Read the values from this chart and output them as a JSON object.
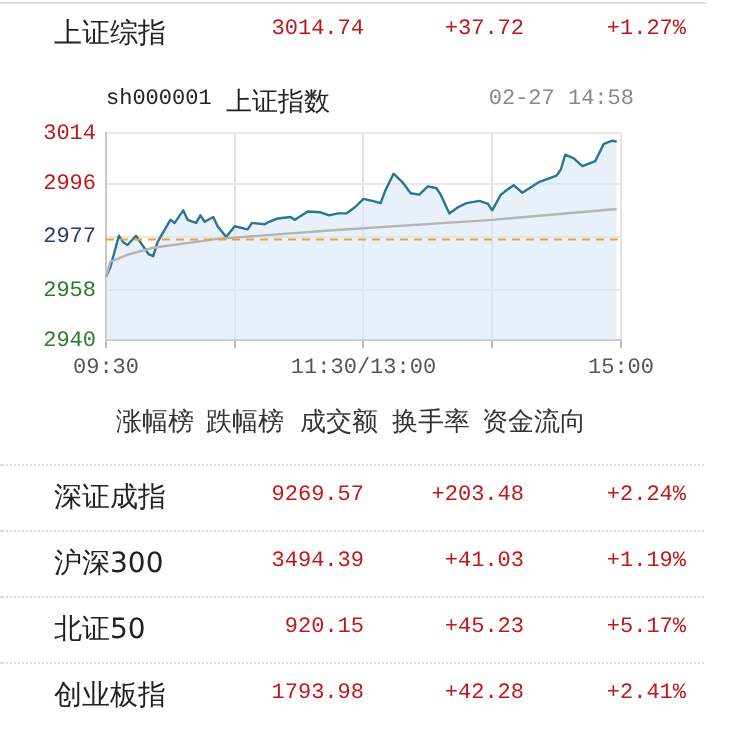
{
  "chart_data": {
    "type": "line",
    "title": "上证指数",
    "subtitle": "sh000001",
    "annotations": [
      "02-27 14:58",
      "上证综指",
      "3014.74",
      "+37.72",
      "+1.27%",
      "涨幅榜",
      "跌幅榜",
      "成交额",
      "换手率",
      "资金流向",
      "深证成指",
      "9269.57",
      "+203.48",
      "+2.24%",
      "沪深300",
      "3494.39",
      "+41.03",
      "+1.19%",
      "北证50",
      "920.15",
      "+45.23",
      "+5.17%",
      "创业板指",
      "1793.98",
      "+42.28",
      "+2.41%"
    ],
    "categories": [
      "09:30",
      null,
      null,
      null,
      null,
      null,
      null,
      null,
      null,
      null,
      null,
      null,
      null,
      null,
      null,
      null,
      null,
      null,
      null,
      null,
      null,
      null,
      null,
      null,
      null,
      null,
      null,
      null,
      null,
      null,
      null,
      null,
      null,
      null,
      null,
      null,
      null,
      null,
      null,
      null,
      null,
      null,
      null,
      null,
      null,
      null,
      null,
      null,
      null,
      null,
      null,
      null,
      null,
      null,
      null,
      null,
      null,
      null,
      null,
      null,
      "11:30/13:00",
      null,
      null,
      null,
      null,
      null,
      null,
      null,
      null,
      null,
      null,
      null,
      null,
      null,
      null,
      null,
      null,
      null,
      null,
      null,
      null,
      null,
      null,
      null,
      null,
      null,
      null,
      null,
      null,
      null,
      null,
      null,
      null,
      null,
      null,
      null,
      null,
      null,
      null,
      null,
      null,
      null,
      null,
      null,
      null,
      null,
      null,
      null,
      null,
      null,
      null,
      null,
      null,
      null,
      null,
      null,
      null,
      null,
      null,
      null,
      "15:00"
    ],
    "series": [
      {
        "type": "area",
        "color": "#2c7493",
        "values": [
          2962.6,
          2966,
          null,
          2977.3,
          2975,
          2974,
          null,
          2977.3,
          2975,
          null,
          2970.6,
          2970,
          2975,
          null,
          null,
          2983,
          2981.9,
          null,
          2986.4,
          2983,
          null,
          2981.9,
          2984.6,
          2982.3,
          null,
          2984,
          2980.7,
          null,
          2976.9,
          null,
          2980.7,
          null,
          null,
          2979.6,
          2981.9,
          null,
          null,
          2981.4,
          2982.3,
          null,
          2983.5,
          null,
          null,
          2984,
          2983,
          null,
          null,
          2986,
          null,
          null,
          2985.7,
          null,
          2984.6,
          null,
          2985.3,
          null,
          2985.3,
          null,
          2987.5,
          null,
          2990.5,
          null,
          2989.8,
          null,
          2989,
          2993.2,
          null,
          2999.5,
          null,
          2996.6,
          null,
          2992.5,
          null,
          2992,
          null,
          2995,
          null,
          2994.3,
          2992,
          null,
          2985.3,
          null,
          2987.5,
          null,
          2989,
          null,
          null,
          2989.8,
          null,
          2988.7,
          2986.4,
          null,
          2992,
          2993.2,
          null,
          2995.4,
          null,
          2992.7,
          null,
          null,
          null,
          2996.6,
          null,
          null,
          null,
          2998.8,
          3001.1,
          3006.3,
          null,
          3005,
          null,
          3002.2,
          null,
          null,
          3004,
          null,
          3010.2,
          null,
          3011.3,
          3011,
          null
        ]
      },
      {
        "type": "line",
        "color": "#b4b4b4",
        "values": [
          2962.6,
          2968,
          null,
          null,
          null,
          2970.5,
          null,
          null,
          null,
          null,
          null,
          2973,
          null,
          null,
          null,
          null,
          null,
          null,
          null,
          null,
          null,
          null,
          null,
          null,
          null,
          null,
          2976.2,
          null,
          null,
          null,
          null,
          null,
          null,
          null,
          null,
          null,
          null,
          null,
          null,
          null,
          null,
          null,
          null,
          null,
          null,
          null,
          null,
          null,
          null,
          null,
          null,
          null,
          2979.2,
          null,
          null,
          null,
          null,
          null,
          null,
          null,
          null,
          null,
          null,
          null,
          null,
          null,
          null,
          null,
          null,
          null,
          null,
          null,
          null,
          null,
          null,
          null,
          null,
          null,
          null,
          null,
          null,
          null,
          null,
          null,
          null,
          null,
          null,
          null,
          null,
          null,
          2983,
          null,
          null,
          null,
          null,
          null,
          null,
          null,
          null,
          null,
          null,
          null,
          null,
          null,
          null,
          null,
          null,
          null,
          null,
          null,
          null,
          null,
          null,
          null,
          null,
          null,
          null,
          null,
          null,
          2986.9,
          null
        ]
      }
    ],
    "ylim": [
      2940,
      3014
    ],
    "yticks": [
      2940,
      2958,
      2977,
      2996,
      3014
    ],
    "ref_lines": [
      {
        "axis": "y",
        "value": 2976,
        "label": null,
        "color": "#f0a030",
        "line_style": "dashed"
      }
    ],
    "grid": true,
    "legend": false,
    "marker": "none"
  }
}
